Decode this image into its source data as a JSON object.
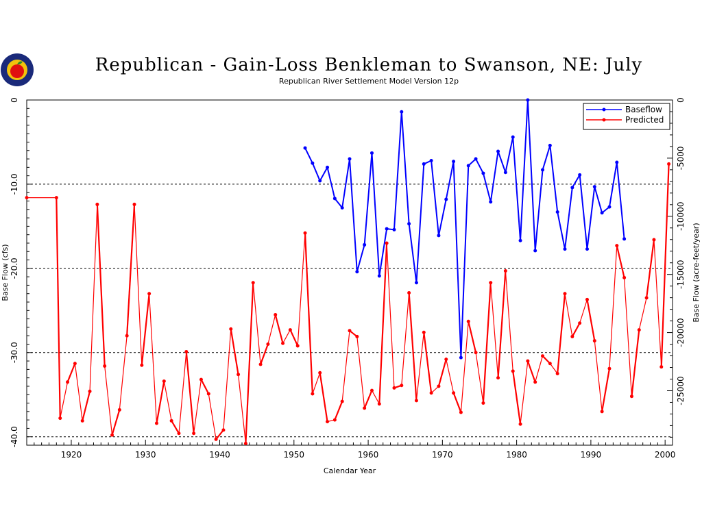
{
  "colors": {
    "baseflow": "#0000ff",
    "predicted": "#ff0000",
    "logo_ring": "#1a2a7a",
    "logo_inner": "#f2c20c",
    "logo_apple": "#e01010"
  },
  "logo": {
    "icon": "apple-seal-icon"
  },
  "chart_data": {
    "type": "line",
    "title": "Republican - Gain-Loss Benkleman to Swanson, NE: July",
    "subtitle": "Republican River Settlement Model Version 12p",
    "xlabel": "Calendar Year",
    "ylabel": "Base Flow (cfs)",
    "y2label": "Base Flow (acre-feet/year)",
    "xlim": [
      1914,
      2001
    ],
    "ylim": [
      -41,
      0
    ],
    "y2lim": [
      -29683,
      0
    ],
    "x_ticks": [
      "1920",
      "1930",
      "1940",
      "1950",
      "1960",
      "1970",
      "1980",
      "1990",
      "2000"
    ],
    "x_tick_values": [
      1920,
      1930,
      1940,
      1950,
      1960,
      1970,
      1980,
      1990,
      2000
    ],
    "y_ticks": [
      "0",
      "-10.0",
      "-20.0",
      "-30.0",
      "-40.0"
    ],
    "y_tick_values": [
      0,
      -10,
      -20,
      -30,
      -40
    ],
    "y2_ticks": [
      "0",
      "-5000",
      "-10000",
      "-15000",
      "-20000",
      "-25000"
    ],
    "y2_tick_values": [
      0,
      -5000,
      -10000,
      -15000,
      -20000,
      -25000
    ],
    "gridlines_y": [
      -10,
      -20,
      -30,
      -40
    ],
    "legend_position": "top-right",
    "series": [
      {
        "name": "Baseflow",
        "color": "#0000ff",
        "points": [
          [
            1951.5,
            -5.7
          ],
          [
            1952.5,
            -7.5
          ],
          [
            1953.5,
            -9.6
          ],
          [
            1954.5,
            -8.0
          ],
          [
            1955.5,
            -11.7
          ],
          [
            1956.5,
            -12.8
          ],
          [
            1957.5,
            -7.0
          ],
          [
            1958.5,
            -20.4
          ],
          [
            1959.5,
            -17.2
          ],
          [
            1960.5,
            -6.3
          ],
          [
            1961.5,
            -20.9
          ],
          [
            1962.5,
            -15.3
          ],
          [
            1963.5,
            -15.4
          ],
          [
            1964.5,
            -1.4
          ],
          [
            1965.5,
            -14.7
          ],
          [
            1966.5,
            -21.7
          ],
          [
            1967.5,
            -7.6
          ],
          [
            1968.5,
            -7.2
          ],
          [
            1969.5,
            -16.1
          ],
          [
            1970.5,
            -11.8
          ],
          [
            1971.5,
            -7.3
          ],
          [
            1972.5,
            -30.6
          ],
          [
            1973.5,
            -7.8
          ],
          [
            1974.5,
            -7.0
          ],
          [
            1975.5,
            -8.7
          ],
          [
            1976.5,
            -12.1
          ],
          [
            1977.5,
            -6.1
          ],
          [
            1978.5,
            -8.6
          ],
          [
            1979.5,
            -4.4
          ],
          [
            1980.5,
            -16.7
          ],
          [
            1981.5,
            0.0
          ],
          [
            1982.5,
            -17.9
          ],
          [
            1983.5,
            -8.3
          ],
          [
            1984.5,
            -5.4
          ],
          [
            1985.5,
            -13.3
          ],
          [
            1986.5,
            -17.7
          ],
          [
            1987.5,
            -10.4
          ],
          [
            1988.5,
            -8.9
          ],
          [
            1989.5,
            -17.7
          ],
          [
            1990.5,
            -10.3
          ],
          [
            1991.5,
            -13.4
          ],
          [
            1992.5,
            -12.7
          ],
          [
            1993.5,
            -7.4
          ],
          [
            1994.5,
            -16.5
          ]
        ]
      },
      {
        "name": "Predicted",
        "color": "#ff0000",
        "points": [
          [
            1914,
            -11.6
          ],
          [
            1918,
            -11.6
          ],
          [
            1918.5,
            -37.8
          ],
          [
            1919.5,
            -33.5
          ],
          [
            1920.5,
            -31.3
          ],
          [
            1921.5,
            -38.1
          ],
          [
            1922.5,
            -34.6
          ],
          [
            1923.5,
            -12.4
          ],
          [
            1924.5,
            -31.6
          ],
          [
            1925.5,
            -39.8
          ],
          [
            1926.5,
            -36.8
          ],
          [
            1927.5,
            -28.0
          ],
          [
            1928.5,
            -12.4
          ],
          [
            1929.5,
            -31.5
          ],
          [
            1930.5,
            -23.0
          ],
          [
            1931.5,
            -38.4
          ],
          [
            1932.5,
            -33.4
          ],
          [
            1933.5,
            -38.1
          ],
          [
            1934.5,
            -39.6
          ],
          [
            1935.5,
            -29.9
          ],
          [
            1936.5,
            -39.6
          ],
          [
            1937.5,
            -33.2
          ],
          [
            1938.5,
            -34.9
          ],
          [
            1939.5,
            -40.3
          ],
          [
            1940.5,
            -39.2
          ],
          [
            1941.5,
            -27.2
          ],
          [
            1942.5,
            -32.6
          ],
          [
            1943.5,
            -40.8
          ],
          [
            1944.5,
            -21.7
          ],
          [
            1945.5,
            -31.4
          ],
          [
            1946.5,
            -29.0
          ],
          [
            1947.5,
            -25.5
          ],
          [
            1948.5,
            -28.9
          ],
          [
            1949.5,
            -27.3
          ],
          [
            1950.5,
            -29.2
          ],
          [
            1951.5,
            -15.8
          ],
          [
            1952.5,
            -34.9
          ],
          [
            1953.5,
            -32.4
          ],
          [
            1954.5,
            -38.2
          ],
          [
            1955.5,
            -38.0
          ],
          [
            1956.5,
            -35.8
          ],
          [
            1957.5,
            -27.4
          ],
          [
            1958.5,
            -28.1
          ],
          [
            1959.5,
            -36.6
          ],
          [
            1960.5,
            -34.5
          ],
          [
            1961.5,
            -36.1
          ],
          [
            1962.5,
            -17.0
          ],
          [
            1963.5,
            -34.2
          ],
          [
            1964.5,
            -33.9
          ],
          [
            1965.5,
            -22.9
          ],
          [
            1966.5,
            -35.7
          ],
          [
            1967.5,
            -27.6
          ],
          [
            1968.5,
            -34.8
          ],
          [
            1969.5,
            -34.0
          ],
          [
            1970.5,
            -30.8
          ],
          [
            1971.5,
            -34.8
          ],
          [
            1972.5,
            -37.1
          ],
          [
            1973.5,
            -26.3
          ],
          [
            1974.5,
            -30.0
          ],
          [
            1975.5,
            -36.0
          ],
          [
            1976.5,
            -21.7
          ],
          [
            1977.5,
            -33.0
          ],
          [
            1978.5,
            -20.3
          ],
          [
            1979.5,
            -32.2
          ],
          [
            1980.5,
            -38.5
          ],
          [
            1981.5,
            -31.0
          ],
          [
            1982.5,
            -33.5
          ],
          [
            1983.5,
            -30.4
          ],
          [
            1984.5,
            -31.3
          ],
          [
            1985.5,
            -32.5
          ],
          [
            1986.5,
            -23.0
          ],
          [
            1987.5,
            -28.1
          ],
          [
            1988.5,
            -26.5
          ],
          [
            1989.5,
            -23.7
          ],
          [
            1990.5,
            -28.6
          ],
          [
            1991.5,
            -37.0
          ],
          [
            1992.5,
            -31.9
          ],
          [
            1993.5,
            -17.3
          ],
          [
            1994.5,
            -21.1
          ],
          [
            1995.5,
            -35.2
          ],
          [
            1996.5,
            -27.3
          ],
          [
            1997.5,
            -23.5
          ],
          [
            1998.5,
            -16.6
          ],
          [
            1999.5,
            -31.7
          ],
          [
            2000.5,
            -7.6
          ]
        ]
      }
    ]
  }
}
